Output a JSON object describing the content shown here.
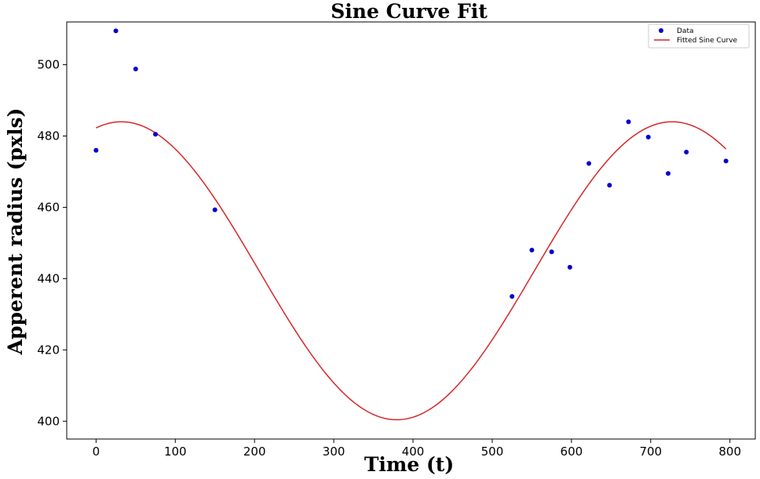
{
  "chart_data": {
    "type": "scatter",
    "title": "Sine Curve Fit",
    "xlabel": "Time (t)",
    "ylabel": "Apperent radius (pxls)",
    "xlim": [
      -37,
      832
    ],
    "ylim": [
      395,
      512
    ],
    "xticks": [
      0,
      100,
      200,
      300,
      400,
      500,
      600,
      700,
      800
    ],
    "yticks": [
      400,
      420,
      440,
      460,
      480,
      500
    ],
    "grid": false,
    "legend_position": "top-right",
    "series": [
      {
        "name": "Data",
        "kind": "scatter",
        "color": "#0000cc",
        "points": [
          {
            "x": 0,
            "y": 476.0
          },
          {
            "x": 25,
            "y": 509.5
          },
          {
            "x": 50,
            "y": 498.8
          },
          {
            "x": 75,
            "y": 480.5
          },
          {
            "x": 150,
            "y": 459.3
          },
          {
            "x": 525,
            "y": 435.0
          },
          {
            "x": 550,
            "y": 448.0
          },
          {
            "x": 575,
            "y": 447.5
          },
          {
            "x": 598,
            "y": 443.2
          },
          {
            "x": 622,
            "y": 472.3
          },
          {
            "x": 648,
            "y": 466.2
          },
          {
            "x": 672,
            "y": 484.0
          },
          {
            "x": 697,
            "y": 479.7
          },
          {
            "x": 722,
            "y": 469.5
          },
          {
            "x": 745,
            "y": 475.5
          },
          {
            "x": 795,
            "y": 473.0
          }
        ]
      },
      {
        "name": "Fitted Sine Curve",
        "kind": "line",
        "color": "#d62728",
        "fit": {
          "amplitude": 41.8,
          "offset": 442.2,
          "period": 695,
          "peak_x": 32,
          "x_start": 0,
          "x_end": 795
        }
      }
    ]
  }
}
